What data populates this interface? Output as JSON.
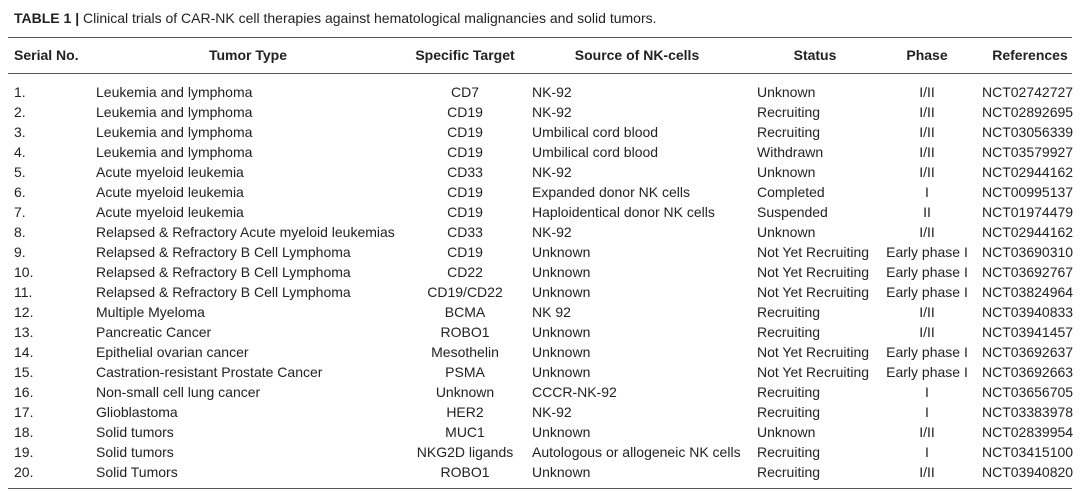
{
  "caption": {
    "label": "TABLE 1",
    "separator": "|",
    "text": "Clinical trials of CAR-NK cell therapies against hematological malignancies and solid tumors."
  },
  "table": {
    "headers": [
      "Serial No.",
      "Tumor Type",
      "Specific Target",
      "Source of NK-cells",
      "Status",
      "Phase",
      "References"
    ],
    "rows": [
      [
        "1.",
        "Leukemia and lymphoma",
        "CD7",
        "NK-92",
        "Unknown",
        "I/II",
        "NCT02742727"
      ],
      [
        "2.",
        "Leukemia and lymphoma",
        "CD19",
        "NK-92",
        "Recruiting",
        "I/II",
        "NCT02892695"
      ],
      [
        "3.",
        "Leukemia and lymphoma",
        "CD19",
        "Umbilical cord blood",
        "Recruiting",
        "I/II",
        "NCT03056339"
      ],
      [
        "4.",
        "Leukemia and lymphoma",
        "CD19",
        "Umbilical cord blood",
        "Withdrawn",
        "I/II",
        "NCT03579927"
      ],
      [
        "5.",
        "Acute myeloid leukemia",
        "CD33",
        "NK-92",
        "Unknown",
        "I/II",
        "NCT02944162"
      ],
      [
        "6.",
        "Acute myeloid leukemia",
        "CD19",
        "Expanded donor NK cells",
        "Completed",
        "I",
        "NCT00995137"
      ],
      [
        "7.",
        "Acute myeloid leukemia",
        "CD19",
        "Haploidentical donor NK cells",
        "Suspended",
        "II",
        "NCT01974479"
      ],
      [
        "8.",
        "Relapsed & Refractory Acute myeloid leukemias",
        "CD33",
        "NK-92",
        "Unknown",
        "I/II",
        "NCT02944162"
      ],
      [
        "9.",
        "Relapsed & Refractory B Cell Lymphoma",
        "CD19",
        "Unknown",
        "Not Yet Recruiting",
        "Early phase I",
        "NCT03690310"
      ],
      [
        "10.",
        "Relapsed & Refractory B Cell Lymphoma",
        "CD22",
        "Unknown",
        "Not Yet Recruiting",
        "Early phase I",
        "NCT03692767"
      ],
      [
        "11.",
        "Relapsed & Refractory B Cell Lymphoma",
        "CD19/CD22",
        "Unknown",
        "Not Yet Recruiting",
        "Early phase I",
        "NCT03824964"
      ],
      [
        "12.",
        "Multiple Myeloma",
        "BCMA",
        "NK 92",
        "Recruiting",
        "I/II",
        "NCT03940833"
      ],
      [
        "13.",
        "Pancreatic Cancer",
        "ROBO1",
        "Unknown",
        "Recruiting",
        "I/II",
        "NCT03941457"
      ],
      [
        "14.",
        "Epithelial ovarian cancer",
        "Mesothelin",
        "Unknown",
        "Not Yet Recruiting",
        "Early phase I",
        "NCT03692637"
      ],
      [
        "15.",
        "Castration-resistant Prostate Cancer",
        "PSMA",
        "Unknown",
        "Not Yet Recruiting",
        "Early phase I",
        "NCT03692663"
      ],
      [
        "16.",
        "Non-small cell lung cancer",
        "Unknown",
        "CCCR-NK-92",
        "Recruiting",
        "I",
        "NCT03656705"
      ],
      [
        "17.",
        "Glioblastoma",
        "HER2",
        "NK-92",
        "Recruiting",
        "I",
        "NCT03383978"
      ],
      [
        "18.",
        "Solid tumors",
        "MUC1",
        "Unknown",
        "Unknown",
        "I/II",
        "NCT02839954"
      ],
      [
        "19.",
        "Solid tumors",
        "NKG2D ligands",
        "Autologous or allogeneic NK cells",
        "Recruiting",
        "I",
        "NCT03415100"
      ],
      [
        "20.",
        "Solid Tumors",
        "ROBO1",
        "Unknown",
        "Recruiting",
        "I/II",
        "NCT03940820"
      ]
    ]
  }
}
